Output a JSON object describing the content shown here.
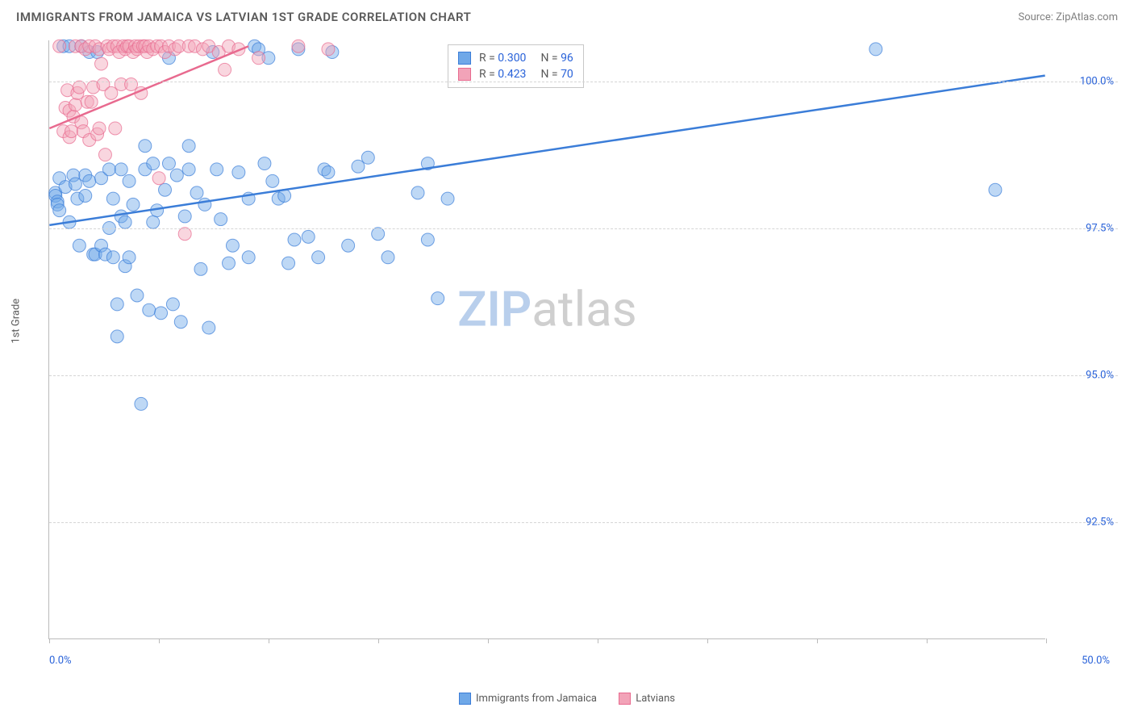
{
  "header": {
    "title": "IMMIGRANTS FROM JAMAICA VS LATVIAN 1ST GRADE CORRELATION CHART",
    "source_label": "Source: ZipAtlas.com"
  },
  "chart": {
    "type": "scatter",
    "y_axis_label": "1st Grade",
    "xlim": [
      0,
      50
    ],
    "ylim": [
      90.5,
      100.7
    ],
    "x_ticks": [
      0,
      5.5,
      11,
      16.5,
      22,
      27.5,
      33,
      38.5,
      44,
      50
    ],
    "x_min_label": "0.0%",
    "x_max_label": "50.0%",
    "y_ticks": [
      {
        "v": 92.5,
        "label": "92.5%"
      },
      {
        "v": 95.0,
        "label": "95.0%"
      },
      {
        "v": 97.5,
        "label": "97.5%"
      },
      {
        "v": 100.0,
        "label": "100.0%"
      }
    ],
    "grid_color": "#d5d5d5",
    "background_color": "#ffffff",
    "axis_color": "#bbbbbb",
    "tick_label_color": "#2962d9",
    "marker_radius": 8,
    "marker_opacity": 0.45,
    "trend_line_width": 2.5,
    "series": [
      {
        "name": "Immigrants from Jamaica",
        "color_fill": "#6fa8e8",
        "color_stroke": "#3b7dd8",
        "r_value": "0.300",
        "n_value": "96",
        "trend": {
          "x1": 0,
          "y1": 97.55,
          "x2": 50,
          "y2": 100.1
        },
        "points": [
          [
            0.3,
            98.1
          ],
          [
            0.3,
            98.05
          ],
          [
            0.4,
            97.95
          ],
          [
            0.4,
            97.9
          ],
          [
            0.5,
            98.35
          ],
          [
            0.5,
            97.8
          ],
          [
            0.7,
            100.6
          ],
          [
            0.8,
            98.2
          ],
          [
            1.0,
            97.6
          ],
          [
            1.0,
            100.6
          ],
          [
            1.2,
            98.4
          ],
          [
            1.3,
            98.25
          ],
          [
            1.4,
            98.0
          ],
          [
            1.5,
            97.2
          ],
          [
            1.6,
            100.6
          ],
          [
            1.8,
            98.05
          ],
          [
            1.8,
            98.4
          ],
          [
            2.0,
            98.3
          ],
          [
            2.0,
            100.5
          ],
          [
            2.2,
            97.05
          ],
          [
            2.3,
            97.05
          ],
          [
            2.4,
            100.5
          ],
          [
            2.6,
            98.35
          ],
          [
            2.6,
            97.2
          ],
          [
            2.8,
            97.05
          ],
          [
            3.0,
            98.5
          ],
          [
            3.0,
            97.5
          ],
          [
            3.2,
            98.0
          ],
          [
            3.2,
            97.0
          ],
          [
            3.4,
            96.2
          ],
          [
            3.4,
            95.65
          ],
          [
            3.6,
            98.5
          ],
          [
            3.6,
            97.7
          ],
          [
            3.8,
            97.6
          ],
          [
            3.8,
            96.85
          ],
          [
            4.0,
            98.3
          ],
          [
            4.0,
            97.0
          ],
          [
            4.2,
            97.9
          ],
          [
            4.4,
            96.35
          ],
          [
            4.6,
            94.5
          ],
          [
            4.8,
            98.5
          ],
          [
            4.8,
            98.9
          ],
          [
            5.0,
            96.1
          ],
          [
            5.2,
            98.6
          ],
          [
            5.2,
            97.6
          ],
          [
            5.4,
            97.8
          ],
          [
            5.6,
            96.05
          ],
          [
            5.8,
            98.15
          ],
          [
            6.0,
            98.6
          ],
          [
            6.0,
            100.4
          ],
          [
            6.2,
            96.2
          ],
          [
            6.4,
            98.4
          ],
          [
            6.6,
            95.9
          ],
          [
            6.8,
            97.7
          ],
          [
            7.0,
            98.5
          ],
          [
            7.0,
            98.9
          ],
          [
            7.4,
            98.1
          ],
          [
            7.6,
            96.8
          ],
          [
            7.8,
            97.9
          ],
          [
            8.0,
            95.8
          ],
          [
            8.2,
            100.5
          ],
          [
            8.4,
            98.5
          ],
          [
            8.6,
            97.65
          ],
          [
            9.0,
            96.9
          ],
          [
            9.2,
            97.2
          ],
          [
            9.5,
            98.45
          ],
          [
            10.0,
            98.0
          ],
          [
            10.0,
            97.0
          ],
          [
            10.3,
            100.6
          ],
          [
            10.5,
            100.55
          ],
          [
            10.8,
            98.6
          ],
          [
            11.0,
            100.4
          ],
          [
            11.2,
            98.3
          ],
          [
            11.5,
            98.0
          ],
          [
            11.8,
            98.05
          ],
          [
            12.0,
            96.9
          ],
          [
            12.3,
            97.3
          ],
          [
            12.5,
            100.55
          ],
          [
            13.0,
            97.35
          ],
          [
            13.5,
            97.0
          ],
          [
            13.8,
            98.5
          ],
          [
            14.0,
            98.45
          ],
          [
            14.2,
            100.5
          ],
          [
            15.0,
            97.2
          ],
          [
            15.5,
            98.55
          ],
          [
            16.0,
            98.7
          ],
          [
            16.5,
            97.4
          ],
          [
            17.0,
            97.0
          ],
          [
            18.5,
            98.1
          ],
          [
            19.0,
            97.3
          ],
          [
            19.0,
            98.6
          ],
          [
            19.5,
            96.3
          ],
          [
            20.0,
            98.0
          ],
          [
            21.5,
            100.5
          ],
          [
            41.5,
            100.55
          ],
          [
            47.5,
            98.15
          ]
        ]
      },
      {
        "name": "Latvians",
        "color_fill": "#f2a3b8",
        "color_stroke": "#e86a8f",
        "r_value": "0.423",
        "n_value": "70",
        "trend": {
          "x1": 0,
          "y1": 99.2,
          "x2": 10,
          "y2": 100.6
        },
        "points": [
          [
            0.5,
            100.6
          ],
          [
            0.7,
            99.15
          ],
          [
            0.8,
            99.55
          ],
          [
            0.9,
            99.85
          ],
          [
            1.0,
            99.05
          ],
          [
            1.0,
            99.5
          ],
          [
            1.1,
            99.15
          ],
          [
            1.2,
            99.4
          ],
          [
            1.3,
            100.6
          ],
          [
            1.3,
            99.6
          ],
          [
            1.4,
            99.8
          ],
          [
            1.5,
            99.9
          ],
          [
            1.6,
            100.6
          ],
          [
            1.6,
            99.3
          ],
          [
            1.7,
            99.15
          ],
          [
            1.8,
            100.55
          ],
          [
            1.9,
            99.65
          ],
          [
            2.0,
            100.6
          ],
          [
            2.0,
            99.0
          ],
          [
            2.1,
            99.65
          ],
          [
            2.2,
            99.9
          ],
          [
            2.3,
            100.6
          ],
          [
            2.4,
            99.1
          ],
          [
            2.5,
            100.55
          ],
          [
            2.5,
            99.2
          ],
          [
            2.6,
            100.3
          ],
          [
            2.7,
            99.95
          ],
          [
            2.8,
            98.75
          ],
          [
            2.9,
            100.6
          ],
          [
            3.0,
            100.55
          ],
          [
            3.1,
            99.8
          ],
          [
            3.2,
            100.6
          ],
          [
            3.3,
            99.2
          ],
          [
            3.4,
            100.6
          ],
          [
            3.5,
            100.5
          ],
          [
            3.6,
            99.95
          ],
          [
            3.7,
            100.6
          ],
          [
            3.8,
            100.55
          ],
          [
            3.9,
            100.6
          ],
          [
            4.0,
            100.6
          ],
          [
            4.1,
            99.95
          ],
          [
            4.2,
            100.5
          ],
          [
            4.3,
            100.6
          ],
          [
            4.4,
            100.55
          ],
          [
            4.5,
            100.6
          ],
          [
            4.6,
            99.8
          ],
          [
            4.7,
            100.6
          ],
          [
            4.8,
            100.6
          ],
          [
            4.9,
            100.5
          ],
          [
            5.0,
            100.6
          ],
          [
            5.2,
            100.55
          ],
          [
            5.4,
            100.6
          ],
          [
            5.5,
            98.35
          ],
          [
            5.6,
            100.6
          ],
          [
            5.8,
            100.5
          ],
          [
            6.0,
            100.6
          ],
          [
            6.3,
            100.55
          ],
          [
            6.5,
            100.6
          ],
          [
            6.8,
            97.4
          ],
          [
            7.0,
            100.6
          ],
          [
            7.3,
            100.6
          ],
          [
            7.7,
            100.55
          ],
          [
            8.0,
            100.6
          ],
          [
            8.5,
            100.5
          ],
          [
            8.8,
            100.2
          ],
          [
            9.0,
            100.6
          ],
          [
            9.5,
            100.55
          ],
          [
            10.5,
            100.4
          ],
          [
            12.5,
            100.6
          ],
          [
            14.0,
            100.55
          ]
        ]
      }
    ],
    "stats_box": {
      "r_label": "R = ",
      "n_label": "N = "
    },
    "legend_bottom_series1": "Immigrants from Jamaica",
    "legend_bottom_series2": "Latvians"
  },
  "watermark": {
    "text_zip": "ZIP",
    "text_atlas": "atlas",
    "color_zip": "#b9cfec",
    "color_atlas": "#cfcfcf"
  }
}
